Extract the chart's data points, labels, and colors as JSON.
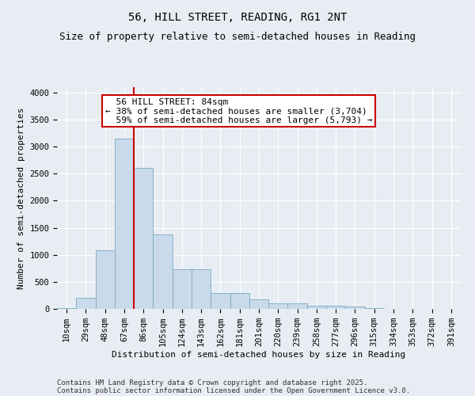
{
  "title": "56, HILL STREET, READING, RG1 2NT",
  "subtitle": "Size of property relative to semi-detached houses in Reading",
  "xlabel": "Distribution of semi-detached houses by size in Reading",
  "ylabel": "Number of semi-detached properties",
  "bar_color": "#c9daea",
  "bar_edge_color": "#7aaabe",
  "background_color": "#e8edf4",
  "plot_bg_color": "#e8edf4",
  "annotation_box_color": "#ffffff",
  "annotation_border_color": "#cc0000",
  "property_line_color": "#cc0000",
  "property_label": "56 HILL STREET: 84sqm",
  "pct_smaller": 38,
  "pct_larger": 59,
  "count_smaller": 3704,
  "count_larger": 5793,
  "categories": [
    "10sqm",
    "29sqm",
    "48sqm",
    "67sqm",
    "86sqm",
    "105sqm",
    "124sqm",
    "143sqm",
    "162sqm",
    "181sqm",
    "201sqm",
    "220sqm",
    "239sqm",
    "258sqm",
    "277sqm",
    "296sqm",
    "315sqm",
    "334sqm",
    "353sqm",
    "372sqm",
    "391sqm"
  ],
  "values": [
    15,
    200,
    1080,
    3150,
    2600,
    1380,
    730,
    730,
    300,
    300,
    170,
    100,
    100,
    60,
    55,
    40,
    10,
    5,
    2,
    1,
    0
  ],
  "ylim": [
    0,
    4100
  ],
  "yticks": [
    0,
    500,
    1000,
    1500,
    2000,
    2500,
    3000,
    3500,
    4000
  ],
  "property_bin_index": 4,
  "footer_line1": "Contains HM Land Registry data © Crown copyright and database right 2025.",
  "footer_line2": "Contains public sector information licensed under the Open Government Licence v3.0.",
  "title_fontsize": 10,
  "subtitle_fontsize": 9,
  "axis_label_fontsize": 8,
  "tick_fontsize": 7.5,
  "annotation_fontsize": 8,
  "footer_fontsize": 6.5
}
